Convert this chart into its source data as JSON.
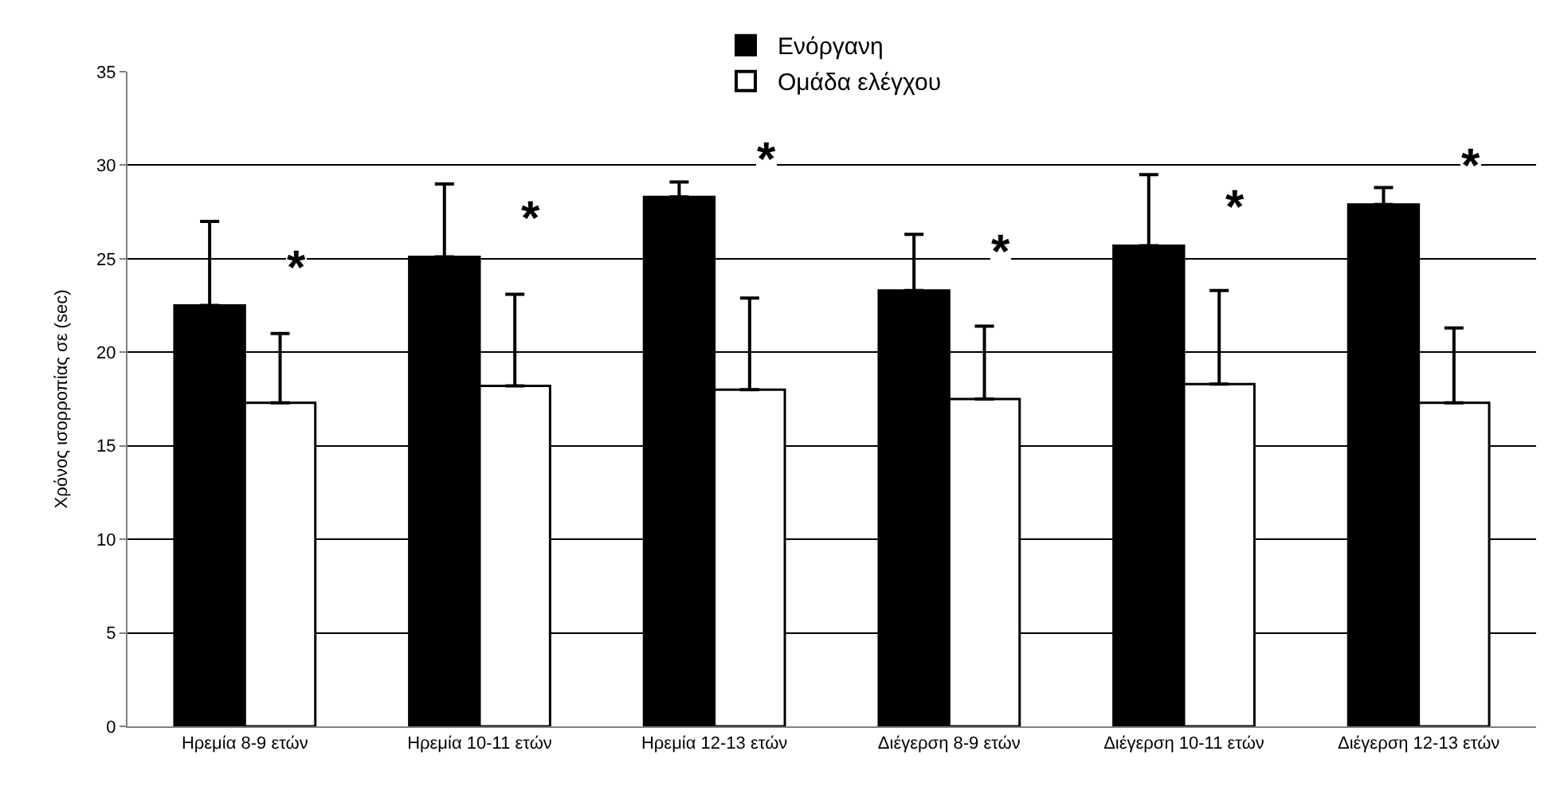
{
  "chart_data": {
    "type": "bar",
    "ylabel": "Χρόνος ισορροπίας σε (sec)",
    "categories": [
      "Ηρεμία 8-9 ετών",
      "Ηρεμία 10-11 ετών",
      "Ηρεμία 12-13 ετών",
      "Διέγερση 8-9 ετών",
      "Διέγερση 10-11 ετών",
      "Διέγερση 12-13 ετών"
    ],
    "series": [
      {
        "name": "Ενόργανη",
        "color": "#000000",
        "values": [
          22.5,
          25.1,
          28.3,
          23.3,
          25.7,
          27.9
        ],
        "errors": [
          [
            22.5,
            27.0
          ],
          [
            25.1,
            29.0
          ],
          [
            28.3,
            29.1
          ],
          [
            23.3,
            26.3
          ],
          [
            25.7,
            29.5
          ],
          [
            27.9,
            28.8
          ]
        ]
      },
      {
        "name": "Ομάδα ελέγχου",
        "color": "#ffffff",
        "values": [
          17.3,
          18.2,
          18.0,
          17.5,
          18.3,
          17.3
        ],
        "errors": [
          [
            17.3,
            21.0
          ],
          [
            18.2,
            23.1
          ],
          [
            18.0,
            22.9
          ],
          [
            17.5,
            21.4
          ],
          [
            18.3,
            23.3
          ],
          [
            17.3,
            21.3
          ]
        ]
      }
    ],
    "annotations": [
      "*",
      "*",
      "*",
      "*",
      "*",
      "*"
    ],
    "ylim": [
      0,
      35
    ],
    "yticks": [
      0,
      5,
      10,
      15,
      20,
      25,
      30,
      35
    ],
    "grid": "y",
    "legend": "top"
  }
}
